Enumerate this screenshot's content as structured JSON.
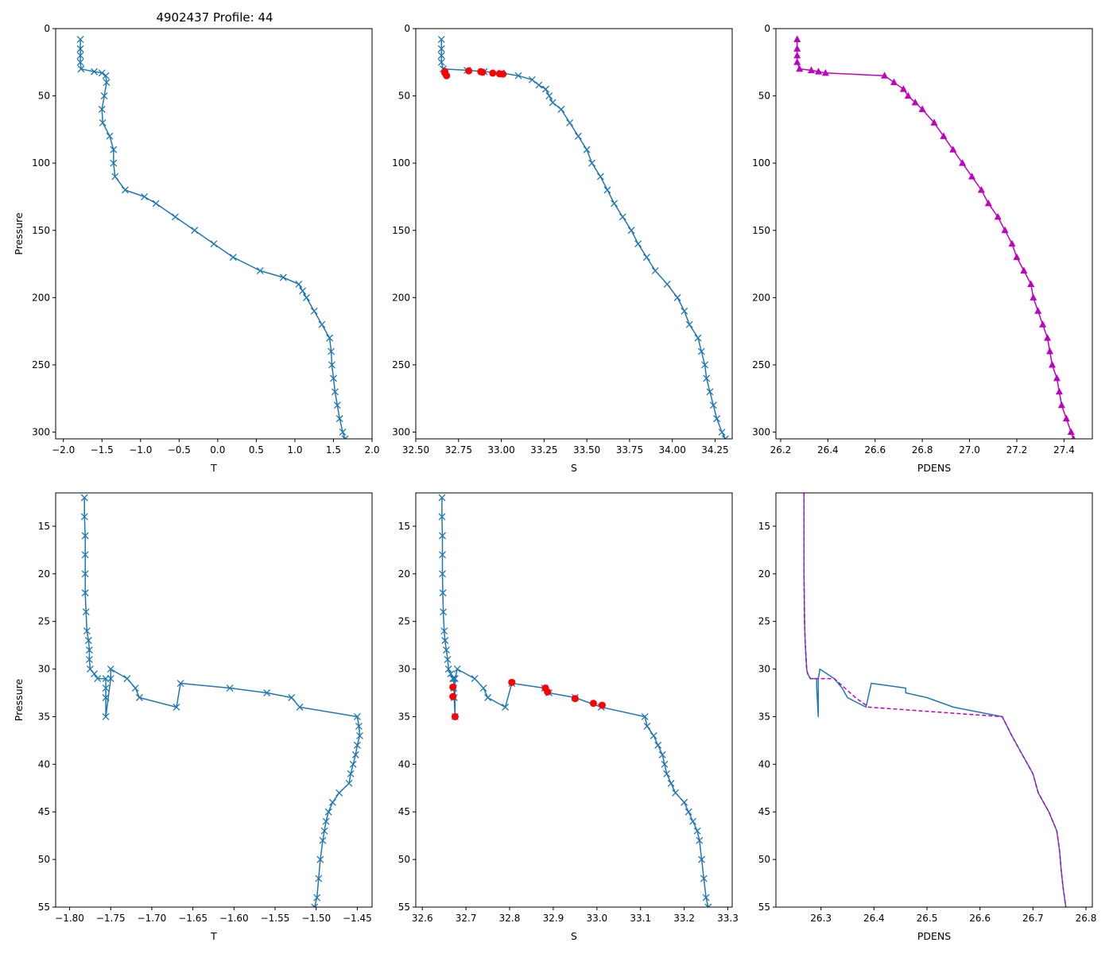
{
  "figure": {
    "title": "4902437 Profile: 44",
    "colors": {
      "series": "#1f77b4",
      "flag": "#ff0000",
      "density": "#bf00bf"
    }
  },
  "chart_data": [
    {
      "type": "line",
      "panel": "top-left",
      "title": "4902437 Profile: 44",
      "xlabel": "T",
      "ylabel": "Pressure",
      "xlim": [
        -2.1,
        2.0
      ],
      "ylim": [
        305,
        0
      ],
      "x_ticks": [
        -2.0,
        -1.5,
        -1.0,
        -0.5,
        0.0,
        0.5,
        1.0,
        1.5,
        2.0
      ],
      "x_tick_labels": [
        "−2.0",
        "−1.5",
        "−1.0",
        "−0.5",
        "0.0",
        "0.5",
        "1.0",
        "1.5",
        "2.0"
      ],
      "y_ticks": [
        0,
        50,
        100,
        150,
        200,
        250,
        300
      ],
      "y_tick_labels": [
        "0",
        "50",
        "100",
        "150",
        "200",
        "250",
        "300"
      ],
      "series": [
        {
          "name": "T",
          "marker": "x",
          "color": "#1f77b4",
          "pressure": [
            8,
            15,
            20,
            25,
            30,
            32,
            33,
            35,
            40,
            50,
            60,
            70,
            80,
            90,
            100,
            110,
            120,
            125,
            130,
            140,
            150,
            160,
            170,
            180,
            185,
            190,
            195,
            200,
            210,
            220,
            230,
            240,
            250,
            260,
            270,
            280,
            290,
            300,
            305
          ],
          "values": [
            -1.78,
            -1.78,
            -1.78,
            -1.78,
            -1.77,
            -1.6,
            -1.5,
            -1.45,
            -1.44,
            -1.47,
            -1.5,
            -1.49,
            -1.4,
            -1.35,
            -1.35,
            -1.33,
            -1.2,
            -0.95,
            -0.8,
            -0.55,
            -0.3,
            -0.05,
            0.2,
            0.55,
            0.85,
            1.05,
            1.1,
            1.15,
            1.25,
            1.35,
            1.45,
            1.47,
            1.48,
            1.5,
            1.52,
            1.55,
            1.58,
            1.62,
            1.65
          ]
        }
      ]
    },
    {
      "type": "line",
      "panel": "top-middle",
      "xlabel": "S",
      "ylabel": "",
      "xlim": [
        32.5,
        34.35
      ],
      "ylim": [
        305,
        0
      ],
      "x_ticks": [
        32.5,
        32.75,
        33.0,
        33.25,
        33.5,
        33.75,
        34.0,
        34.25
      ],
      "x_tick_labels": [
        "32.50",
        "32.75",
        "33.00",
        "33.25",
        "33.50",
        "33.75",
        "34.00",
        "34.25"
      ],
      "y_ticks": [
        0,
        50,
        100,
        150,
        200,
        250,
        300
      ],
      "y_tick_labels": [
        "0",
        "50",
        "100",
        "150",
        "200",
        "250",
        "300"
      ],
      "series": [
        {
          "name": "S",
          "marker": "x",
          "color": "#1f77b4",
          "pressure": [
            8,
            15,
            20,
            25,
            30,
            31,
            32,
            33,
            35,
            38,
            42,
            45,
            50,
            55,
            60,
            70,
            80,
            90,
            100,
            110,
            120,
            130,
            140,
            150,
            160,
            170,
            180,
            190,
            200,
            210,
            220,
            230,
            240,
            250,
            260,
            270,
            280,
            290,
            300,
            305
          ],
          "values": [
            32.65,
            32.65,
            32.65,
            32.65,
            32.66,
            32.8,
            32.9,
            33.0,
            33.1,
            33.18,
            33.22,
            33.26,
            33.28,
            33.3,
            33.35,
            33.4,
            33.45,
            33.5,
            33.53,
            33.58,
            33.62,
            33.66,
            33.71,
            33.76,
            33.8,
            33.85,
            33.9,
            33.97,
            34.03,
            34.07,
            34.1,
            34.15,
            34.17,
            34.19,
            34.2,
            34.22,
            34.24,
            34.26,
            34.29,
            34.31
          ]
        },
        {
          "name": "S flagged",
          "marker": "o",
          "color": "#ff0000",
          "pressure": [
            31.9,
            32.9,
            35.0,
            31.4,
            32.0,
            32.4,
            33.1,
            33.6,
            33.8
          ],
          "values": [
            32.67,
            32.67,
            32.68,
            32.81,
            32.88,
            32.89,
            32.95,
            32.99,
            33.01
          ]
        }
      ]
    },
    {
      "type": "line",
      "panel": "top-right",
      "xlabel": "PDENS",
      "ylabel": "",
      "xlim": [
        26.18,
        27.52
      ],
      "ylim": [
        305,
        0
      ],
      "x_ticks": [
        26.2,
        26.4,
        26.6,
        26.8,
        27.0,
        27.2,
        27.4
      ],
      "x_tick_labels": [
        "26.2",
        "26.4",
        "26.6",
        "26.8",
        "27.0",
        "27.2",
        "27.4"
      ],
      "y_ticks": [
        0,
        50,
        100,
        150,
        200,
        250,
        300
      ],
      "y_tick_labels": [
        "0",
        "50",
        "100",
        "150",
        "200",
        "250",
        "300"
      ],
      "series": [
        {
          "name": "PDENS",
          "marker": "^",
          "color": "#bf00bf",
          "pressure": [
            8,
            15,
            20,
            25,
            30,
            31,
            32,
            33,
            35,
            40,
            45,
            50,
            55,
            60,
            70,
            80,
            90,
            100,
            110,
            120,
            130,
            140,
            150,
            160,
            170,
            180,
            190,
            200,
            210,
            220,
            230,
            240,
            250,
            260,
            270,
            280,
            290,
            300,
            305
          ],
          "values": [
            26.27,
            26.27,
            26.27,
            26.27,
            26.28,
            26.33,
            26.36,
            26.39,
            26.64,
            26.68,
            26.72,
            26.74,
            26.77,
            26.8,
            26.85,
            26.89,
            26.93,
            26.97,
            27.01,
            27.05,
            27.08,
            27.12,
            27.15,
            27.18,
            27.2,
            27.23,
            27.26,
            27.27,
            27.29,
            27.31,
            27.33,
            27.34,
            27.35,
            27.37,
            27.38,
            27.39,
            27.41,
            27.43,
            27.44
          ]
        }
      ]
    },
    {
      "type": "line",
      "panel": "bottom-left",
      "xlabel": "T",
      "ylabel": "Pressure",
      "xlim": [
        -1.817,
        -1.432
      ],
      "ylim": [
        55,
        11.5
      ],
      "x_ticks": [
        -1.8,
        -1.75,
        -1.7,
        -1.65,
        -1.6,
        -1.55,
        -1.5,
        -1.45
      ],
      "x_tick_labels": [
        "−1.80",
        "−1.75",
        "−1.70",
        "−1.65",
        "−1.60",
        "−1.55",
        "−1.50",
        "−1.45"
      ],
      "y_ticks": [
        15,
        20,
        25,
        30,
        35,
        40,
        45,
        50,
        55
      ],
      "y_tick_labels": [
        "15",
        "20",
        "25",
        "30",
        "35",
        "40",
        "45",
        "50",
        "55"
      ],
      "series": [
        {
          "name": "T",
          "marker": "x",
          "color": "#1f77b4",
          "pressure": [
            12,
            14,
            16,
            18,
            20,
            22,
            24,
            26,
            27,
            28,
            29,
            30,
            30.5,
            31,
            31,
            32,
            33,
            35,
            31,
            30,
            31,
            32,
            33,
            34,
            31.5,
            32,
            32.5,
            33,
            34,
            35,
            36,
            37,
            38,
            39,
            40,
            41,
            42,
            43,
            44,
            45,
            46,
            47,
            48,
            50,
            52,
            54,
            55
          ],
          "values": [
            -1.782,
            -1.782,
            -1.781,
            -1.781,
            -1.781,
            -1.781,
            -1.78,
            -1.779,
            -1.777,
            -1.776,
            -1.776,
            -1.775,
            -1.77,
            -1.766,
            -1.756,
            -1.756,
            -1.756,
            -1.756,
            -1.75,
            -1.75,
            -1.73,
            -1.72,
            -1.715,
            -1.67,
            -1.665,
            -1.605,
            -1.56,
            -1.53,
            -1.52,
            -1.45,
            -1.448,
            -1.447,
            -1.45,
            -1.452,
            -1.455,
            -1.458,
            -1.46,
            -1.472,
            -1.48,
            -1.485,
            -1.488,
            -1.49,
            -1.492,
            -1.495,
            -1.497,
            -1.499,
            -1.502
          ]
        }
      ]
    },
    {
      "type": "line",
      "panel": "bottom-middle",
      "xlabel": "S",
      "ylabel": "",
      "xlim": [
        32.585,
        33.31
      ],
      "ylim": [
        55,
        11.5
      ],
      "x_ticks": [
        32.6,
        32.7,
        32.8,
        32.9,
        33.0,
        33.1,
        33.2,
        33.3
      ],
      "x_tick_labels": [
        "32.6",
        "32.7",
        "32.8",
        "32.9",
        "33.0",
        "33.1",
        "33.2",
        "33.3"
      ],
      "y_ticks": [
        15,
        20,
        25,
        30,
        35,
        40,
        45,
        50,
        55
      ],
      "y_tick_labels": [
        "15",
        "20",
        "25",
        "30",
        "35",
        "40",
        "45",
        "50",
        "55"
      ],
      "series": [
        {
          "name": "S",
          "marker": "x",
          "color": "#1f77b4",
          "pressure": [
            12,
            14,
            16,
            18,
            20,
            22,
            24,
            26,
            27,
            28,
            29,
            30,
            30.5,
            31,
            31,
            32,
            33,
            35,
            31,
            30,
            31,
            32,
            33,
            34,
            31.5,
            32,
            32.5,
            33,
            34,
            35,
            36,
            37,
            38,
            39,
            40,
            41,
            42,
            43,
            44,
            45,
            46,
            47,
            48,
            50,
            52,
            54,
            55
          ],
          "values": [
            32.645,
            32.645,
            32.646,
            32.646,
            32.646,
            32.647,
            32.648,
            32.65,
            32.652,
            32.655,
            32.658,
            32.66,
            32.665,
            32.67,
            32.672,
            32.672,
            32.673,
            32.675,
            32.675,
            32.68,
            32.72,
            32.74,
            32.75,
            32.79,
            32.805,
            32.88,
            32.89,
            32.95,
            33.01,
            33.11,
            33.115,
            33.13,
            33.14,
            33.15,
            33.155,
            33.16,
            33.17,
            33.18,
            33.2,
            33.21,
            33.22,
            33.23,
            33.235,
            33.24,
            33.245,
            33.25,
            33.255
          ]
        },
        {
          "name": "S flagged",
          "marker": "o",
          "color": "#ff0000",
          "pressure": [
            31.9,
            32.9,
            35.0,
            31.4,
            32.0,
            32.4,
            33.1,
            33.6,
            33.8
          ],
          "values": [
            32.67,
            32.67,
            32.675,
            32.805,
            32.882,
            32.887,
            32.95,
            32.992,
            33.012
          ]
        }
      ]
    },
    {
      "type": "line",
      "panel": "bottom-right",
      "xlabel": "PDENS",
      "ylabel": "",
      "xlim": [
        26.215,
        26.812
      ],
      "ylim": [
        55,
        11.5
      ],
      "x_ticks": [
        26.3,
        26.4,
        26.5,
        26.6,
        26.7,
        26.8
      ],
      "x_tick_labels": [
        "26.3",
        "26.4",
        "26.5",
        "26.6",
        "26.7",
        "26.8"
      ],
      "y_ticks": [
        15,
        20,
        25,
        30,
        35,
        40,
        45,
        50,
        55
      ],
      "y_tick_labels": [
        "15",
        "20",
        "25",
        "30",
        "35",
        "40",
        "45",
        "50",
        "55"
      ],
      "series": [
        {
          "name": "PDENS",
          "marker": "none",
          "color": "#1f77b4",
          "pressure": [
            11.5,
            20,
            25,
            27,
            29,
            30,
            30.5,
            31,
            31,
            32,
            33,
            35,
            31,
            30,
            31,
            32,
            33,
            34,
            31.5,
            32,
            32.5,
            33,
            34,
            35,
            37,
            39,
            41,
            43,
            45,
            47,
            49,
            51,
            53,
            55
          ],
          "values": [
            26.268,
            26.268,
            26.269,
            26.27,
            26.272,
            26.273,
            26.275,
            26.28,
            26.292,
            26.292,
            26.293,
            26.295,
            26.295,
            26.298,
            26.325,
            26.34,
            26.35,
            26.385,
            26.395,
            26.46,
            26.46,
            26.5,
            26.55,
            26.642,
            26.66,
            26.68,
            26.7,
            26.71,
            26.73,
            26.745,
            26.75,
            26.753,
            26.757,
            26.762
          ]
        },
        {
          "name": "PDENS (magenta dashed)",
          "marker": "none",
          "color": "#bf00bf",
          "pressure": [
            11.5,
            20,
            25,
            27,
            29,
            30,
            30.5,
            31,
            31,
            32,
            33,
            34,
            35,
            37,
            39,
            41,
            43,
            45,
            47,
            49,
            51,
            53,
            55
          ],
          "values": [
            26.268,
            26.268,
            26.269,
            26.27,
            26.272,
            26.273,
            26.275,
            26.28,
            26.325,
            26.345,
            26.365,
            26.39,
            26.642,
            26.66,
            26.68,
            26.7,
            26.71,
            26.73,
            26.745,
            26.75,
            26.753,
            26.757,
            26.762
          ]
        }
      ]
    }
  ]
}
